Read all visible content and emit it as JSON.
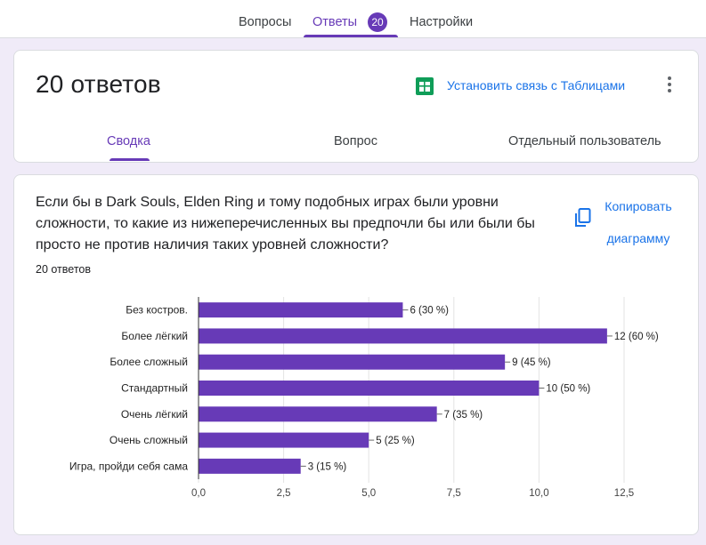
{
  "tabs": {
    "questions": "Вопросы",
    "answers": "Ответы",
    "answers_count": "20",
    "settings": "Настройки"
  },
  "summary_card": {
    "title": "20 ответов",
    "sheets_link": "Установить связь с Таблицами",
    "sheets_icon": "sheets-icon",
    "more_icon": "more-vert-icon",
    "subtabs": [
      "Сводка",
      "Вопрос",
      "Отдельный пользователь"
    ],
    "active_subtab": "Сводка"
  },
  "question_card": {
    "question": "Если бы в Dark Souls, Elden Ring и тому подобных играх были уровни сложности, то какие из нижеперечисленных вы предпочли бы или были бы просто не против наличия таких уровней сложности?",
    "response_count": "20 ответов",
    "copy_label": "Копировать диаграмму",
    "copy_icon": "copy-icon"
  },
  "colors": {
    "accent": "#673ab7",
    "link": "#1a73e8",
    "background": "#f0ebf8",
    "sheets_green": "#0f9d58"
  },
  "chart_data": {
    "type": "bar",
    "orientation": "horizontal",
    "categories": [
      "Без костров.",
      "Более лёгкий",
      "Более сложный",
      "Стандартный",
      "Очень лёгкий",
      "Очень сложный",
      "Игра, пройди себя сама"
    ],
    "values": [
      6,
      12,
      9,
      10,
      7,
      5,
      3
    ],
    "labels": [
      "6 (30 %)",
      "12 (60 %)",
      "9 (45 %)",
      "10 (50 %)",
      "7 (35 %)",
      "5 (25 %)",
      "3 (15 %)"
    ],
    "xticks": [
      "0,0",
      "2,5",
      "5,0",
      "7,5",
      "10,0",
      "12,5"
    ],
    "xlim": [
      0,
      12.5
    ],
    "grid": true,
    "bar_color": "#673ab7"
  }
}
